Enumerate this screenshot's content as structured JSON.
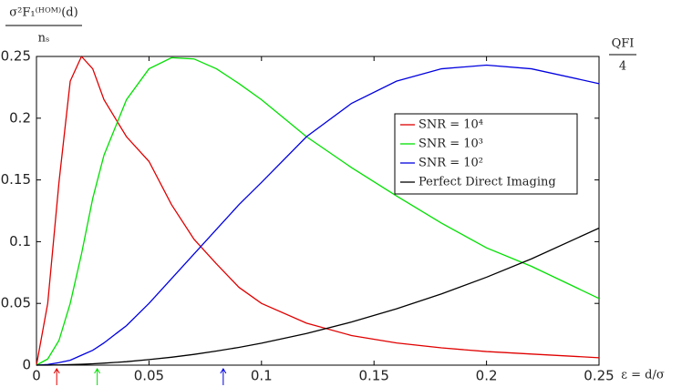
{
  "chart_data": {
    "type": "line",
    "ylabel_numerator": "σ²F₁⁽ᴴᴼᴹ⁾(d)",
    "ylabel_denominator": "nₛ",
    "xlabel": "ε = d/σ",
    "annotation_numerator": "QFI",
    "annotation_denominator": "4",
    "x": [
      0,
      0.005,
      0.01,
      0.015,
      0.02,
      0.025,
      0.03,
      0.04,
      0.05,
      0.06,
      0.07,
      0.08,
      0.09,
      0.1,
      0.12,
      0.14,
      0.16,
      0.18,
      0.2,
      0.22,
      0.25
    ],
    "series": [
      {
        "name": "SNR = 10⁴",
        "color": "#e00000",
        "values": [
          0,
          0.05,
          0.148,
          0.23,
          0.25,
          0.24,
          0.215,
          0.185,
          0.165,
          0.13,
          0.102,
          0.082,
          0.063,
          0.05,
          0.034,
          0.024,
          0.018,
          0.014,
          0.011,
          0.009,
          0.006
        ]
      },
      {
        "name": "SNR = 10³",
        "color": "#00e000",
        "values": [
          0,
          0.005,
          0.02,
          0.05,
          0.09,
          0.135,
          0.17,
          0.215,
          0.24,
          0.249,
          0.248,
          0.24,
          0.228,
          0.215,
          0.185,
          0.16,
          0.137,
          0.115,
          0.095,
          0.08,
          0.054
        ]
      },
      {
        "name": "SNR = 10²",
        "color": "#0000e0",
        "values": [
          0,
          0.0005,
          0.002,
          0.004,
          0.008,
          0.012,
          0.018,
          0.032,
          0.05,
          0.07,
          0.09,
          0.11,
          0.13,
          0.148,
          0.185,
          0.212,
          0.23,
          0.24,
          0.243,
          0.24,
          0.228
        ]
      },
      {
        "name": "Perfect Direct Imaging",
        "color": "#000000",
        "values": [
          0,
          4e-05,
          0.0002,
          0.0004,
          0.0007,
          0.0011,
          0.0016,
          0.0028,
          0.0045,
          0.0064,
          0.0087,
          0.0114,
          0.0144,
          0.0178,
          0.0256,
          0.0349,
          0.0456,
          0.0577,
          0.0712,
          0.0861,
          0.111
        ]
      }
    ],
    "markers": [
      {
        "x": 0.009,
        "color": "#e00000"
      },
      {
        "x": 0.027,
        "color": "#00e000"
      },
      {
        "x": 0.083,
        "color": "#0000e0"
      }
    ],
    "xlim": [
      0,
      0.25
    ],
    "ylim": [
      0,
      0.25
    ],
    "xticks": [
      0,
      0.05,
      0.1,
      0.15,
      0.2,
      0.25
    ],
    "yticks": [
      0,
      0.05,
      0.1,
      0.15,
      0.2,
      0.25
    ],
    "grid": false,
    "legend": "right"
  }
}
